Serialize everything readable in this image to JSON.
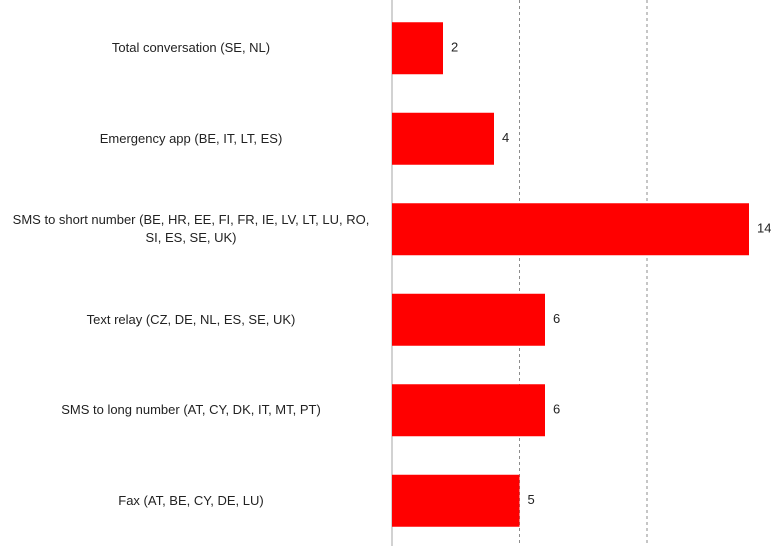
{
  "chart_data": {
    "type": "bar",
    "orientation": "horizontal",
    "categories": [
      "Total conversation (SE, NL)",
      "Emergency app (BE, IT, LT, ES)",
      "SMS to short number (BE, HR, EE, FI, FR, IE, LV, LT, LU, RO, SI, ES, SE, UK)",
      "Text relay (CZ, DE, NL, ES, SE, UK)",
      "SMS to long number (AT, CY, DK, IT, MT, PT)",
      "Fax (AT, BE, CY, DE, LU)"
    ],
    "values": [
      2,
      4,
      14,
      6,
      6,
      5
    ],
    "color": "#ff0000",
    "xlim": [
      0,
      15
    ],
    "xticks": [
      0,
      5,
      10
    ],
    "grid": true
  }
}
